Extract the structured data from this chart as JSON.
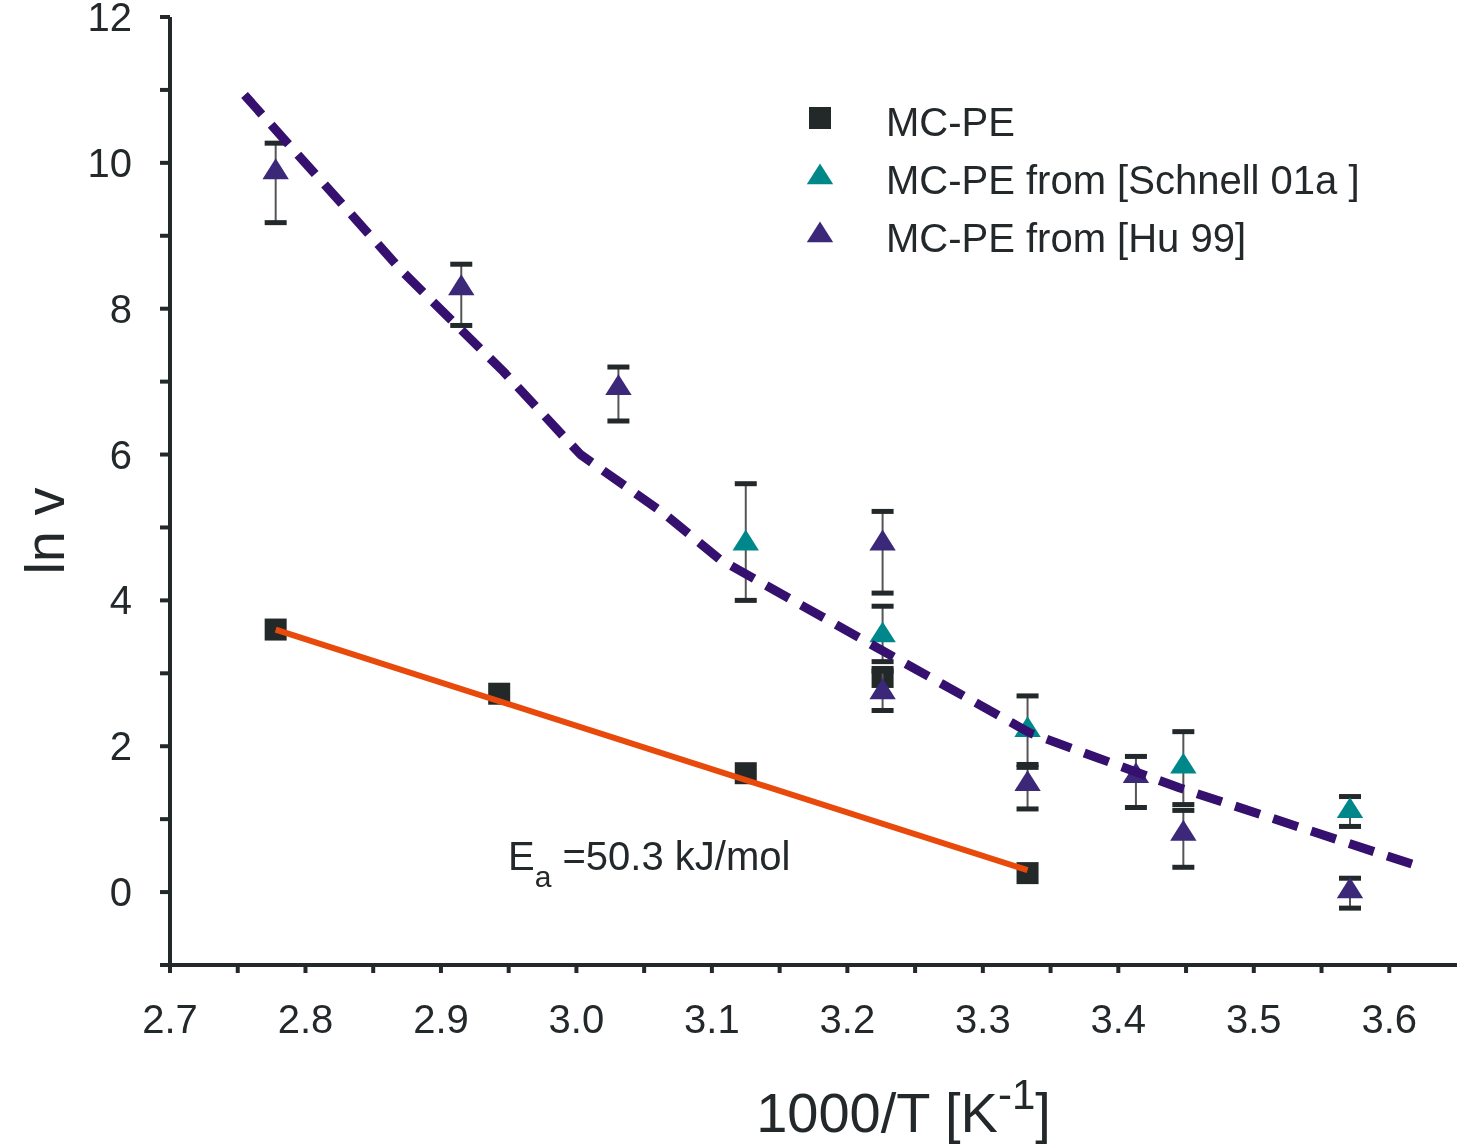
{
  "chart_data": {
    "type": "scatter",
    "xlabel": "1000/T [K$^{-1}$]",
    "ylabel": "ln v",
    "xlim": [
      2.7,
      3.65
    ],
    "ylim": [
      -1,
      12
    ],
    "xticks": [
      2.7,
      {
        "value": 2.75,
        "label": null
      },
      2.8,
      {
        "value": 2.85,
        "label": null
      },
      2.9,
      {
        "value": 2.95,
        "label": null
      },
      {
        "value": 3,
        "label": "3.0"
      },
      {
        "value": 3.05,
        "label": null
      },
      3.1,
      {
        "value": 3.15,
        "label": null
      },
      3.2,
      {
        "value": 3.25,
        "label": null
      },
      3.3,
      {
        "value": 3.35,
        "label": null
      },
      3.4,
      {
        "value": 3.45,
        "label": null
      },
      3.5,
      {
        "value": 3.55,
        "label": null
      },
      3.6
    ],
    "yticks": [
      {
        "value": -1,
        "label": null
      },
      0,
      {
        "value": 1,
        "label": null
      },
      2,
      {
        "value": 3,
        "label": null
      },
      4,
      {
        "value": 5,
        "label": null
      },
      6,
      {
        "value": 7,
        "label": null
      },
      8,
      {
        "value": 9,
        "label": null
      },
      10,
      {
        "value": 11,
        "label": null
      },
      12
    ],
    "legend": "top right",
    "grid": false,
    "annotations": [
      "E$_{a}$ =50.3 kJ/mol"
    ],
    "series": [
      {
        "type": "line",
        "color": "#e84a0c",
        "line_style": "solid",
        "marker": "none",
        "x": [
          2.778,
          3.333
        ],
        "values": [
          3.6,
          0.3
        ]
      },
      {
        "type": "line",
        "color": "#35106e",
        "line_style": "dashed",
        "marker": "none",
        "x": [
          2.755,
          2.872,
          2.946,
          3.003,
          3.064,
          3.106,
          3.224,
          3.335,
          3.445,
          3.619
        ],
        "values": [
          10.93,
          8.5,
          7.14,
          6.0,
          5.2,
          4.56,
          3.33,
          2.18,
          1.43,
          0.37
        ]
      },
      {
        "name": "MC-PE",
        "color": "#232829",
        "marker": "square",
        "x": [
          2.778,
          2.943,
          3.125,
          3.226,
          3.333
        ],
        "values": [
          3.6,
          2.72,
          1.63,
          2.95,
          0.26
        ]
      },
      {
        "name": "MC-PE from [Schnell 01a ]",
        "color": "#00878a",
        "marker": "triangle",
        "x": [
          3.125,
          3.226,
          3.333,
          3.448,
          3.571
        ],
        "values": [
          4.8,
          3.54,
          2.24,
          1.74,
          1.13
        ],
        "errors": [
          [
            4.0,
            5.6
          ],
          [
            3.16,
            3.92
          ],
          [
            1.75,
            2.69
          ],
          [
            1.2,
            2.2
          ],
          [
            0.9,
            1.31
          ]
        ]
      },
      {
        "name": "MC-PE from [Hu 99]",
        "color": "#3b2878",
        "marker": "triangle",
        "x": [
          2.778,
          2.915,
          3.031,
          3.226,
          3.226,
          3.333,
          3.413,
          3.448,
          3.571
        ],
        "values": [
          9.89,
          8.3,
          6.93,
          4.8,
          2.76,
          1.5,
          1.61,
          0.82,
          0.03
        ],
        "errors": [
          [
            9.18,
            10.27
          ],
          [
            7.77,
            8.61
          ],
          [
            6.46,
            7.2
          ],
          [
            4.1,
            5.22
          ],
          [
            2.49,
            3.03
          ],
          [
            1.14,
            1.71
          ],
          [
            1.16,
            1.86
          ],
          [
            0.34,
            1.12
          ],
          [
            -0.22,
            0.19
          ]
        ]
      }
    ]
  }
}
